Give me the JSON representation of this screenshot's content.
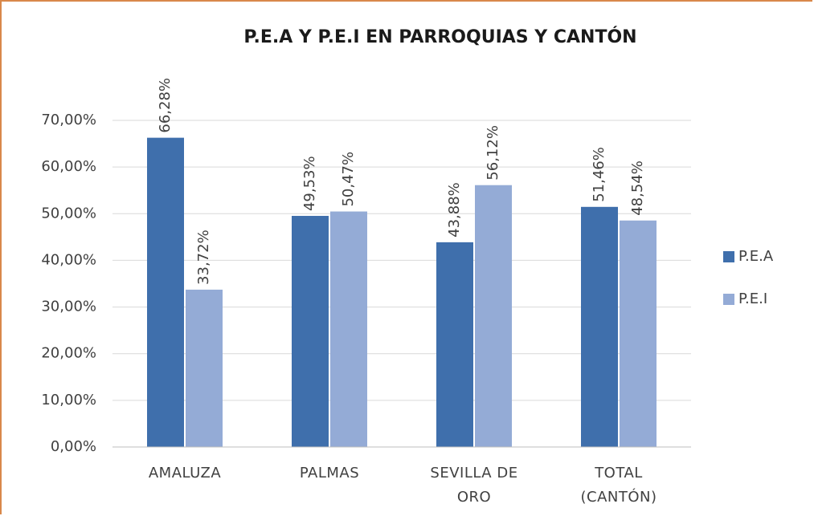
{
  "chart_data": {
    "type": "bar",
    "title": "P.E.A Y P.E.I EN PARROQUIAS Y  CANTÓN",
    "categories": [
      "AMALUZA",
      "PALMAS",
      "SEVILLA DE ORO",
      "TOTAL (CANTÓN)"
    ],
    "series": [
      {
        "name": "P.E.A",
        "color": "#3f6fac",
        "values": [
          66.28,
          49.53,
          43.88,
          51.46
        ],
        "value_labels": [
          "66,28%",
          "49,53%",
          "43,88%",
          "51,46%"
        ]
      },
      {
        "name": "P.E.I",
        "color": "#94abd6",
        "values": [
          33.72,
          50.47,
          56.12,
          48.54
        ],
        "value_labels": [
          "33,72%",
          "50,47%",
          "56,12%",
          "48,54%"
        ]
      }
    ],
    "ylim": [
      0,
      70
    ],
    "yticks": [
      {
        "value": 0,
        "label": "0,00%"
      },
      {
        "value": 10,
        "label": "10,00%"
      },
      {
        "value": 20,
        "label": "20,00%"
      },
      {
        "value": 30,
        "label": "30,00%"
      },
      {
        "value": 40,
        "label": "40,00%"
      },
      {
        "value": 50,
        "label": "50,00%"
      },
      {
        "value": 60,
        "label": "60,00%"
      },
      {
        "value": 70,
        "label": "70,00%"
      }
    ],
    "grid": true,
    "legend": "right"
  }
}
